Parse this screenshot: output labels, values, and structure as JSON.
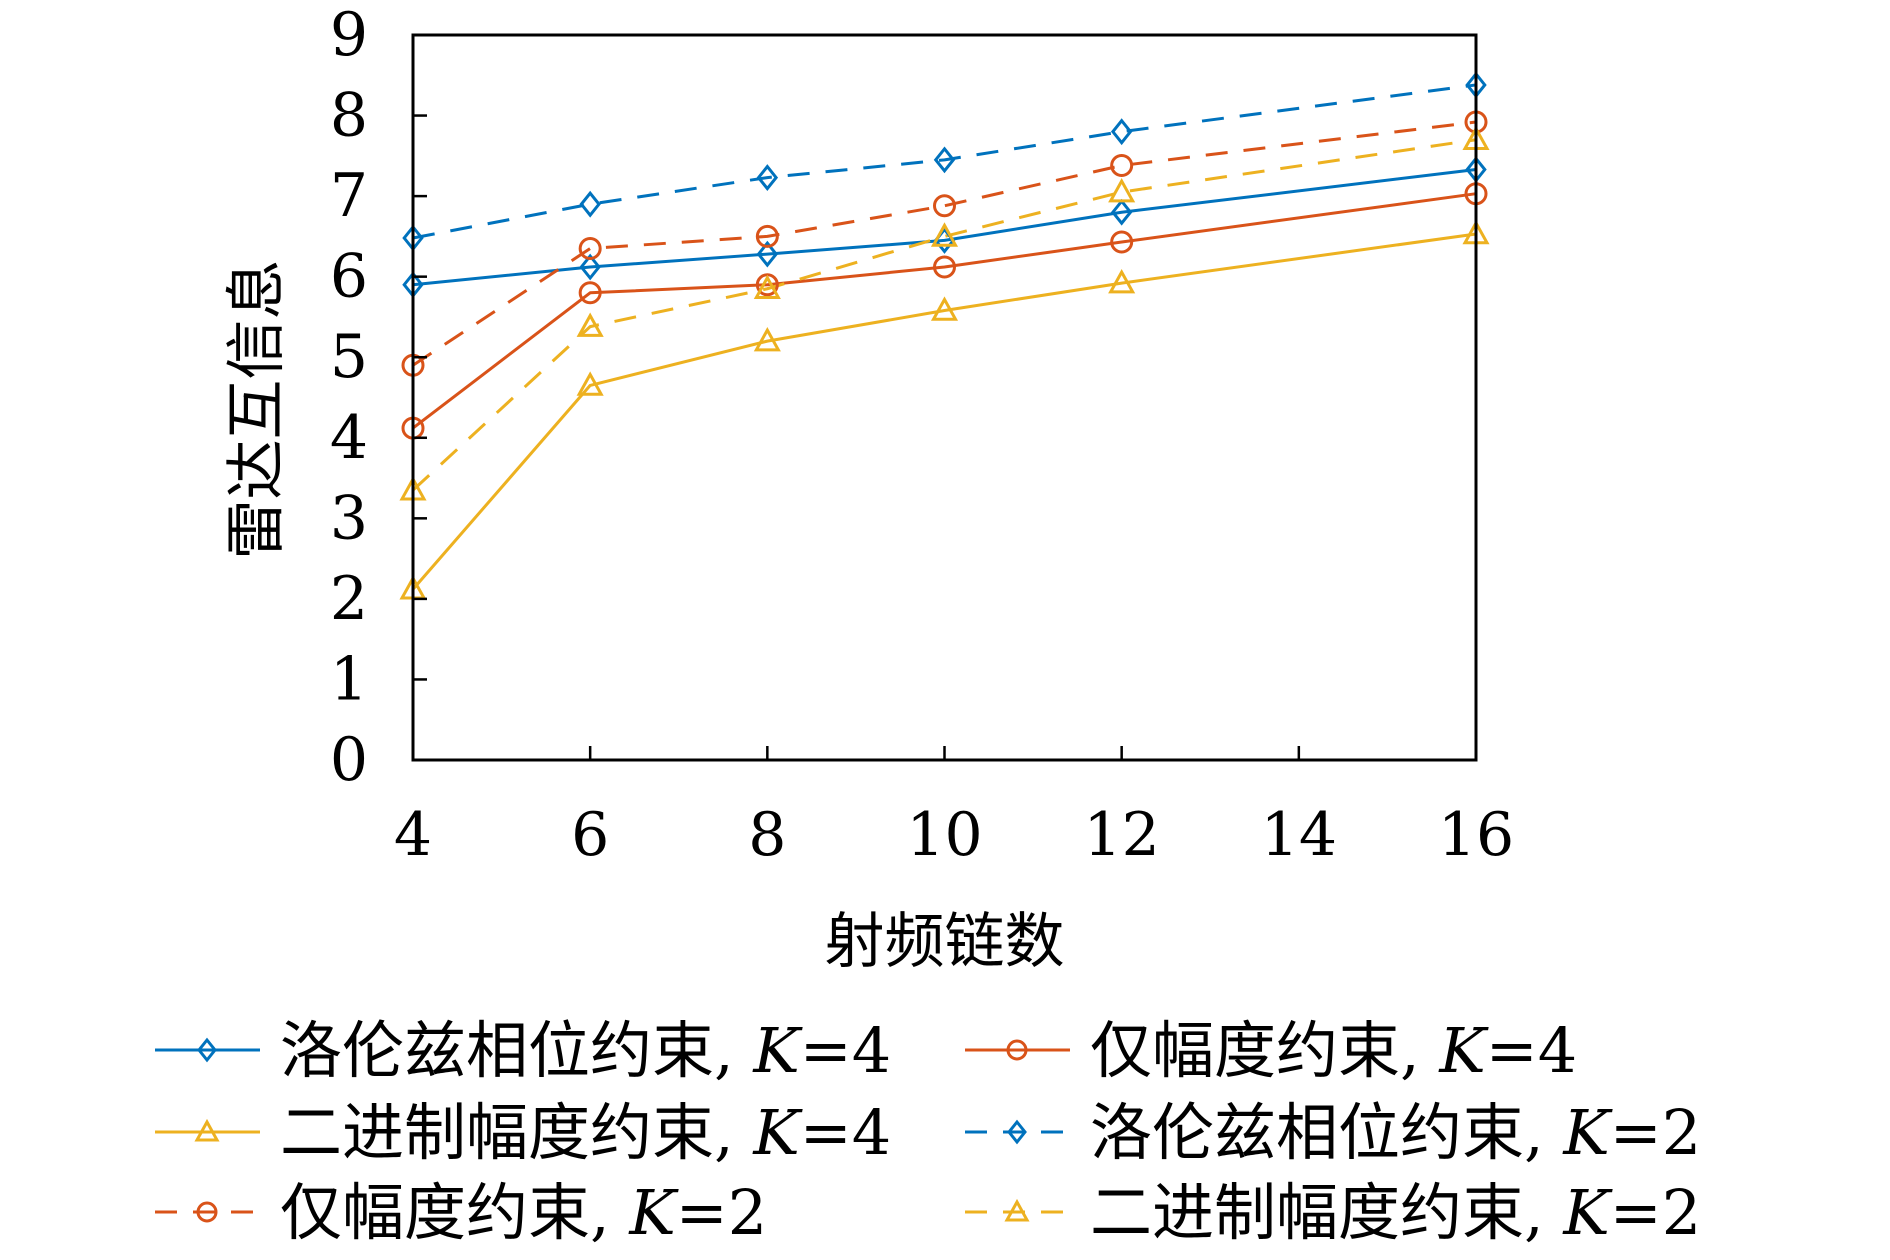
{
  "chart_data": {
    "type": "line",
    "xlabel": "射频链数",
    "ylabel": "雷达互信息",
    "x_ticks": [
      "4",
      "6",
      "8",
      "10",
      "12",
      "14",
      "16"
    ],
    "y_ticks": [
      "0",
      "1",
      "2",
      "3",
      "4",
      "5",
      "6",
      "7",
      "8",
      "9"
    ],
    "xlim": [
      4,
      16
    ],
    "ylim": [
      0,
      9
    ],
    "grid": false,
    "legend_position": "bottom",
    "x": [
      4,
      6,
      8,
      10,
      12,
      16
    ],
    "series": [
      {
        "name": "洛伦兹相位约束, K=4",
        "label_text": "洛伦兹相位约束, ",
        "label_k": "K",
        "label_value": "=4",
        "values": [
          5.9,
          6.12,
          6.28,
          6.45,
          6.8,
          7.33
        ],
        "color": "#0072BD",
        "marker": "diamond",
        "dash": "solid"
      },
      {
        "name": "仅幅度约束, K=4",
        "label_text": "仅幅度约束, ",
        "label_k": "K",
        "label_value": "=4",
        "values": [
          4.12,
          5.8,
          5.9,
          6.12,
          6.43,
          7.03
        ],
        "color": "#D95319",
        "marker": "circle",
        "dash": "solid"
      },
      {
        "name": "二进制幅度约束, K=4",
        "label_text": "二进制幅度约束, ",
        "label_k": "K",
        "label_value": "=4",
        "values": [
          2.12,
          4.65,
          5.2,
          5.58,
          5.92,
          6.53
        ],
        "color": "#EDB120",
        "marker": "triangle",
        "dash": "solid"
      },
      {
        "name": "洛伦兹相位约束, K=2",
        "label_text": "洛伦兹相位约束, ",
        "label_k": "K",
        "label_value": "=2",
        "values": [
          6.48,
          6.9,
          7.23,
          7.45,
          7.8,
          8.38
        ],
        "color": "#0072BD",
        "marker": "diamond",
        "dash": "dashed"
      },
      {
        "name": "仅幅度约束, K=2",
        "label_text": "仅幅度约束, ",
        "label_k": "K",
        "label_value": "=2",
        "values": [
          4.9,
          6.35,
          6.5,
          6.88,
          7.38,
          7.92
        ],
        "color": "#D95319",
        "marker": "circle",
        "dash": "dashed"
      },
      {
        "name": "二进制幅度约束, K=2",
        "label_text": "二进制幅度约束, ",
        "label_k": "K",
        "label_value": "=2",
        "values": [
          3.35,
          5.38,
          5.85,
          6.5,
          7.05,
          7.7
        ],
        "color": "#EDB120",
        "marker": "triangle",
        "dash": "dashed"
      }
    ]
  }
}
